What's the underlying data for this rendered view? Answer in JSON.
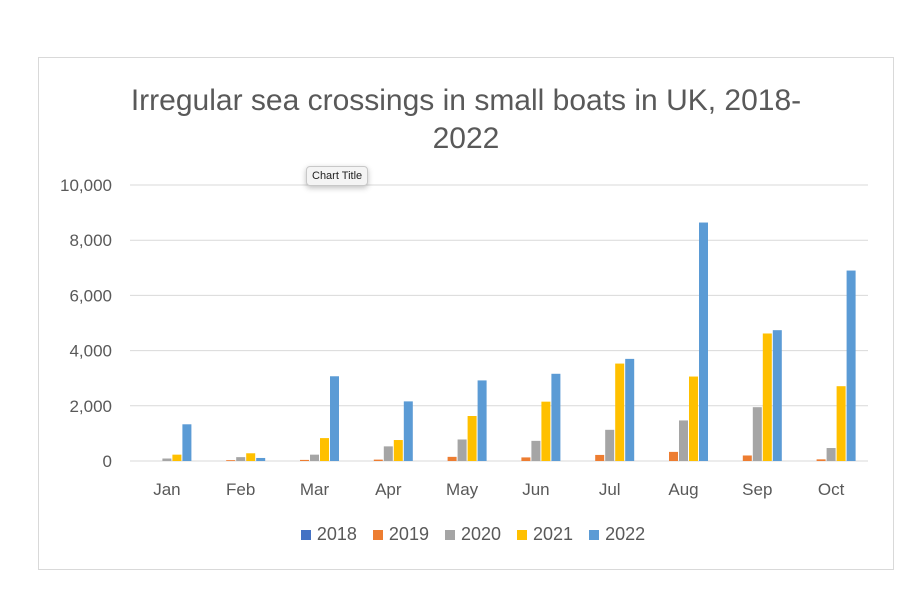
{
  "chart_data": {
    "type": "bar",
    "title_lines": [
      "Irregular sea crossings in small boats in UK, 2018-",
      "2022"
    ],
    "tooltip": "Chart Title",
    "categories": [
      "Jan",
      "Feb",
      "Mar",
      "Apr",
      "May",
      "Jun",
      "Jul",
      "Aug",
      "Sep",
      "Oct"
    ],
    "y_ticks": [
      "0",
      "2,000",
      "4,000",
      "6,000",
      "8,000",
      "10,000"
    ],
    "ylim": [
      0,
      10000
    ],
    "grid": true,
    "legend_position": "bottom",
    "series": [
      {
        "name": "2018",
        "color": "#4472c4",
        "values": [
          0,
          0,
          0,
          0,
          0,
          0,
          0,
          0,
          0,
          0
        ]
      },
      {
        "name": "2019",
        "color": "#ed7d31",
        "values": [
          0,
          30,
          40,
          50,
          150,
          130,
          220,
          330,
          200,
          60
        ]
      },
      {
        "name": "2020",
        "color": "#a5a5a5",
        "values": [
          90,
          140,
          230,
          530,
          780,
          730,
          1130,
          1470,
          1950,
          470
        ]
      },
      {
        "name": "2021",
        "color": "#ffc000",
        "values": [
          230,
          280,
          830,
          760,
          1630,
          2150,
          3530,
          3060,
          4620,
          2710
        ]
      },
      {
        "name": "2022",
        "color": "#5b9bd5",
        "values": [
          1330,
          110,
          3070,
          2160,
          2920,
          3160,
          3700,
          8640,
          4740,
          6900
        ]
      }
    ]
  }
}
